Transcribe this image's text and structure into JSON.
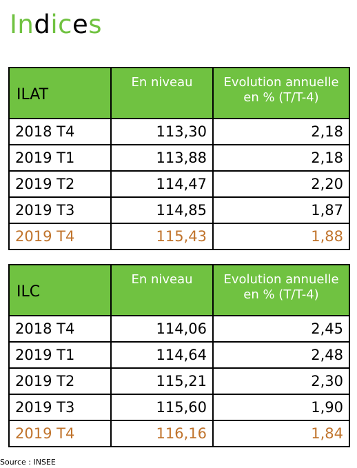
{
  "title": {
    "segments": [
      {
        "text": "In",
        "color": "#70c241"
      },
      {
        "text": "d",
        "color": "#000000"
      },
      {
        "text": "ic",
        "color": "#70c241"
      },
      {
        "text": "e",
        "color": "#000000"
      },
      {
        "text": "s",
        "color": "#70c241"
      }
    ]
  },
  "colors": {
    "header_green": "#70c241",
    "highlight_orange": "#c0732b"
  },
  "tables": [
    {
      "name": "ILAT",
      "col_level": "En niveau",
      "col_evolution": "Evolution annuelle en % (T/T-4)",
      "rows": [
        {
          "period": "2018 T4",
          "level": "113,30",
          "evolution": "2,18",
          "highlight": false
        },
        {
          "period": "2019 T1",
          "level": "113,88",
          "evolution": "2,18",
          "highlight": false
        },
        {
          "period": "2019 T2",
          "level": "114,47",
          "evolution": "2,20",
          "highlight": false
        },
        {
          "period": "2019 T3",
          "level": "114,85",
          "evolution": "1,87",
          "highlight": false
        },
        {
          "period": "2019 T4",
          "level": "115,43",
          "evolution": "1,88",
          "highlight": true
        }
      ]
    },
    {
      "name": "ILC",
      "col_level": "En niveau",
      "col_evolution": "Evolution annuelle en % (T/T-4)",
      "rows": [
        {
          "period": "2018 T4",
          "level": "114,06",
          "evolution": "2,45",
          "highlight": false
        },
        {
          "period": "2019 T1",
          "level": "114,64",
          "evolution": "2,48",
          "highlight": false
        },
        {
          "period": "2019 T2",
          "level": "115,21",
          "evolution": "2,30",
          "highlight": false
        },
        {
          "period": "2019 T3",
          "level": "115,60",
          "evolution": "1,90",
          "highlight": false
        },
        {
          "period": "2019 T4",
          "level": "116,16",
          "evolution": "1,84",
          "highlight": true
        }
      ]
    }
  ],
  "source": "Source : INSEE"
}
